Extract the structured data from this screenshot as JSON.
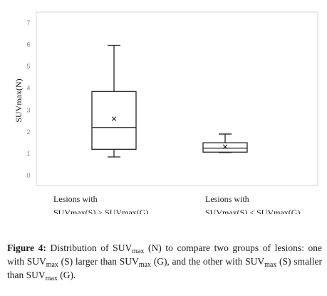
{
  "chart_data": {
    "type": "box",
    "title": "",
    "xlabel": "",
    "ylabel": "SUVmax(N)",
    "ylim": [
      0,
      7
    ],
    "yticks": [
      0,
      1,
      2,
      3,
      4,
      5,
      6,
      7
    ],
    "grid": false,
    "categories": [
      [
        "Lesions with",
        "SUVmax(S) > SUVmax(G)"
      ],
      [
        "Lesions with",
        "SUVmax(S) < SUVmax(G)"
      ]
    ],
    "boxes": [
      {
        "min": 0.85,
        "q1": 1.2,
        "median": 2.2,
        "q3": 3.85,
        "max": 5.97,
        "mean": 2.6
      },
      {
        "min": 1.05,
        "q1": 1.07,
        "median": 1.25,
        "q3": 1.5,
        "max": 1.9,
        "mean": 1.32
      }
    ]
  },
  "caption": {
    "label": "Figure 4:",
    "part1": " Distribution of SUV",
    "sub1": "max",
    "part2": " (N) to compare two groups of lesions: one with SUV",
    "sub2": "max",
    "part3": " (S) larger than SUV",
    "sub3": "max",
    "part4": " (G), and the other with SUV",
    "sub4": "max",
    "part5": " (S) smaller than SUV",
    "sub5": "max",
    "part6": " (G)."
  }
}
